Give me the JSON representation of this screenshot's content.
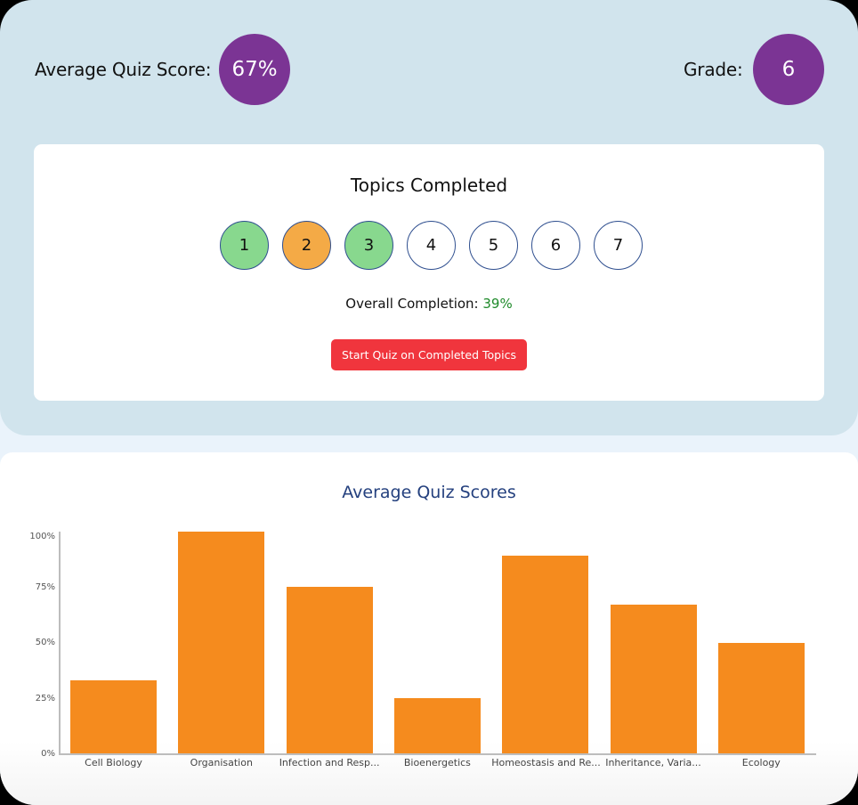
{
  "summary": {
    "avg_score_label": "Average Quiz Score:",
    "avg_score_value": "67%",
    "grade_label": "Grade:",
    "grade_value": "6"
  },
  "topics": {
    "title": "Topics Completed",
    "items": [
      {
        "label": "1",
        "status": "completed",
        "color": "#88d88e"
      },
      {
        "label": "2",
        "status": "partial",
        "color": "#f4aa46"
      },
      {
        "label": "3",
        "status": "completed",
        "color": "#88d88e"
      },
      {
        "label": "4",
        "status": "not-started",
        "color": "#ffffff"
      },
      {
        "label": "5",
        "status": "not-started",
        "color": "#ffffff"
      },
      {
        "label": "6",
        "status": "not-started",
        "color": "#ffffff"
      },
      {
        "label": "7",
        "status": "not-started",
        "color": "#ffffff"
      }
    ],
    "completion_label": "Overall Completion:",
    "completion_value": "39%",
    "start_button_label": "Start Quiz on Completed Topics"
  },
  "colors": {
    "accent_purple": "#7b3494",
    "bar_orange": "#f58b1e",
    "button_red": "#f0353d",
    "completion_green": "#1e8a2a",
    "title_blue": "#24407e"
  },
  "chart_data": {
    "type": "bar",
    "title": "Average Quiz Scores",
    "xlabel": "",
    "ylabel": "",
    "ylim": [
      0,
      100
    ],
    "yticks": [
      "0%",
      "25%",
      "50%",
      "75%",
      "100%"
    ],
    "categories": [
      "Cell Biology",
      "Organisation",
      "Infection and Resp...",
      "Bioenergetics",
      "Homeostasis and Re...",
      "Inheritance, Varia...",
      "Ecology"
    ],
    "values": [
      33,
      100,
      75,
      25,
      89,
      67,
      50
    ],
    "grid": false,
    "legend": null
  }
}
